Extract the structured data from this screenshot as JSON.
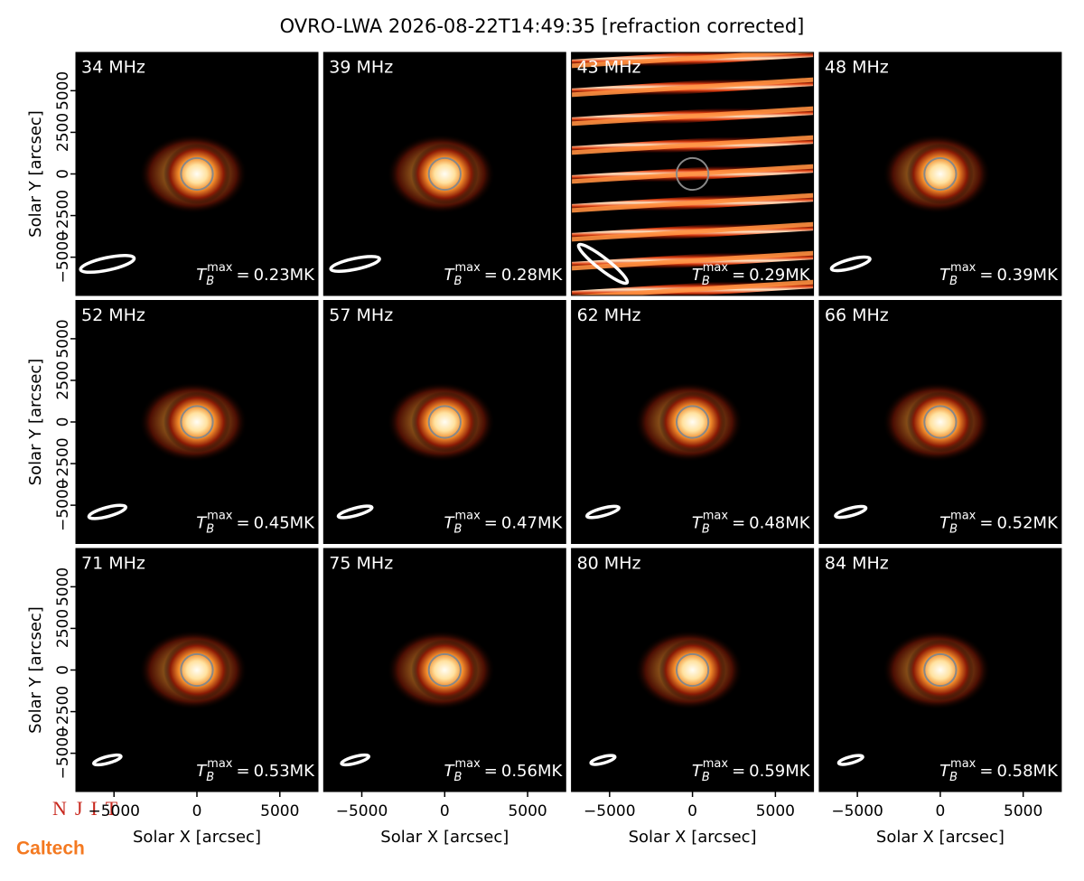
{
  "chart_data": {
    "type": "image",
    "title": "OVRO-LWA 2026-08-22T14:49:35 [refraction corrected]",
    "xlabel": "Solar X [arcsec]",
    "ylabel": "Solar Y [arcsec]",
    "xlim": [
      -7300,
      7300
    ],
    "ylim": [
      -7300,
      7300
    ],
    "xticks": [
      {
        "value": -5000,
        "label": "−5000"
      },
      0,
      5000
    ],
    "yticks": [
      {
        "value": -5000,
        "label": "−5000"
      },
      {
        "value": -2500,
        "label": "−2500"
      },
      0,
      2500,
      5000
    ],
    "solar_radius": 960,
    "tb_label": {
      "symbol": "T",
      "sub": "B",
      "sup": "max",
      "eq": "="
    },
    "panels": [
      {
        "frequency": "34 MHz",
        "tb_max": 0.23,
        "tb_max_label": "0.23MK",
        "pattern": "source",
        "beam": {
          "major": 3300,
          "minor": 750,
          "angle": 12
        }
      },
      {
        "frequency": "39 MHz",
        "tb_max": 0.28,
        "tb_max_label": "0.28MK",
        "pattern": "source",
        "beam": {
          "major": 3000,
          "minor": 650,
          "angle": 12
        }
      },
      {
        "frequency": "43 MHz",
        "tb_max": 0.29,
        "tb_max_label": "0.29MK",
        "pattern": "stripes",
        "beam": {
          "major": 3700,
          "minor": 700,
          "angle": -38
        }
      },
      {
        "frequency": "48 MHz",
        "tb_max": 0.39,
        "tb_max_label": "0.39MK",
        "pattern": "source",
        "beam": {
          "major": 2400,
          "minor": 550,
          "angle": 15
        }
      },
      {
        "frequency": "52 MHz",
        "tb_max": 0.45,
        "tb_max_label": "0.45MK",
        "pattern": "source",
        "beam": {
          "major": 2300,
          "minor": 550,
          "angle": 15
        }
      },
      {
        "frequency": "57 MHz",
        "tb_max": 0.47,
        "tb_max_label": "0.47MK",
        "pattern": "source",
        "beam": {
          "major": 2100,
          "minor": 450,
          "angle": 15
        }
      },
      {
        "frequency": "62 MHz",
        "tb_max": 0.48,
        "tb_max_label": "0.48MK",
        "pattern": "source",
        "beam": {
          "major": 2000,
          "minor": 450,
          "angle": 15
        }
      },
      {
        "frequency": "66 MHz",
        "tb_max": 0.52,
        "tb_max_label": "0.52MK",
        "pattern": "source",
        "beam": {
          "major": 1900,
          "minor": 450,
          "angle": 15
        }
      },
      {
        "frequency": "71 MHz",
        "tb_max": 0.53,
        "tb_max_label": "0.53MK",
        "pattern": "source",
        "beam": {
          "major": 1700,
          "minor": 400,
          "angle": 15
        }
      },
      {
        "frequency": "75 MHz",
        "tb_max": 0.56,
        "tb_max_label": "0.56MK",
        "pattern": "source",
        "beam": {
          "major": 1700,
          "minor": 400,
          "angle": 15
        }
      },
      {
        "frequency": "80 MHz",
        "tb_max": 0.59,
        "tb_max_label": "0.59MK",
        "pattern": "source",
        "beam": {
          "major": 1500,
          "minor": 380,
          "angle": 15
        }
      },
      {
        "frequency": "84 MHz",
        "tb_max": 0.58,
        "tb_max_label": "0.58MK",
        "pattern": "source",
        "beam": {
          "major": 1500,
          "minor": 380,
          "angle": 15
        }
      }
    ]
  },
  "logos": {
    "njit": "NJIT",
    "caltech": "Caltech"
  }
}
